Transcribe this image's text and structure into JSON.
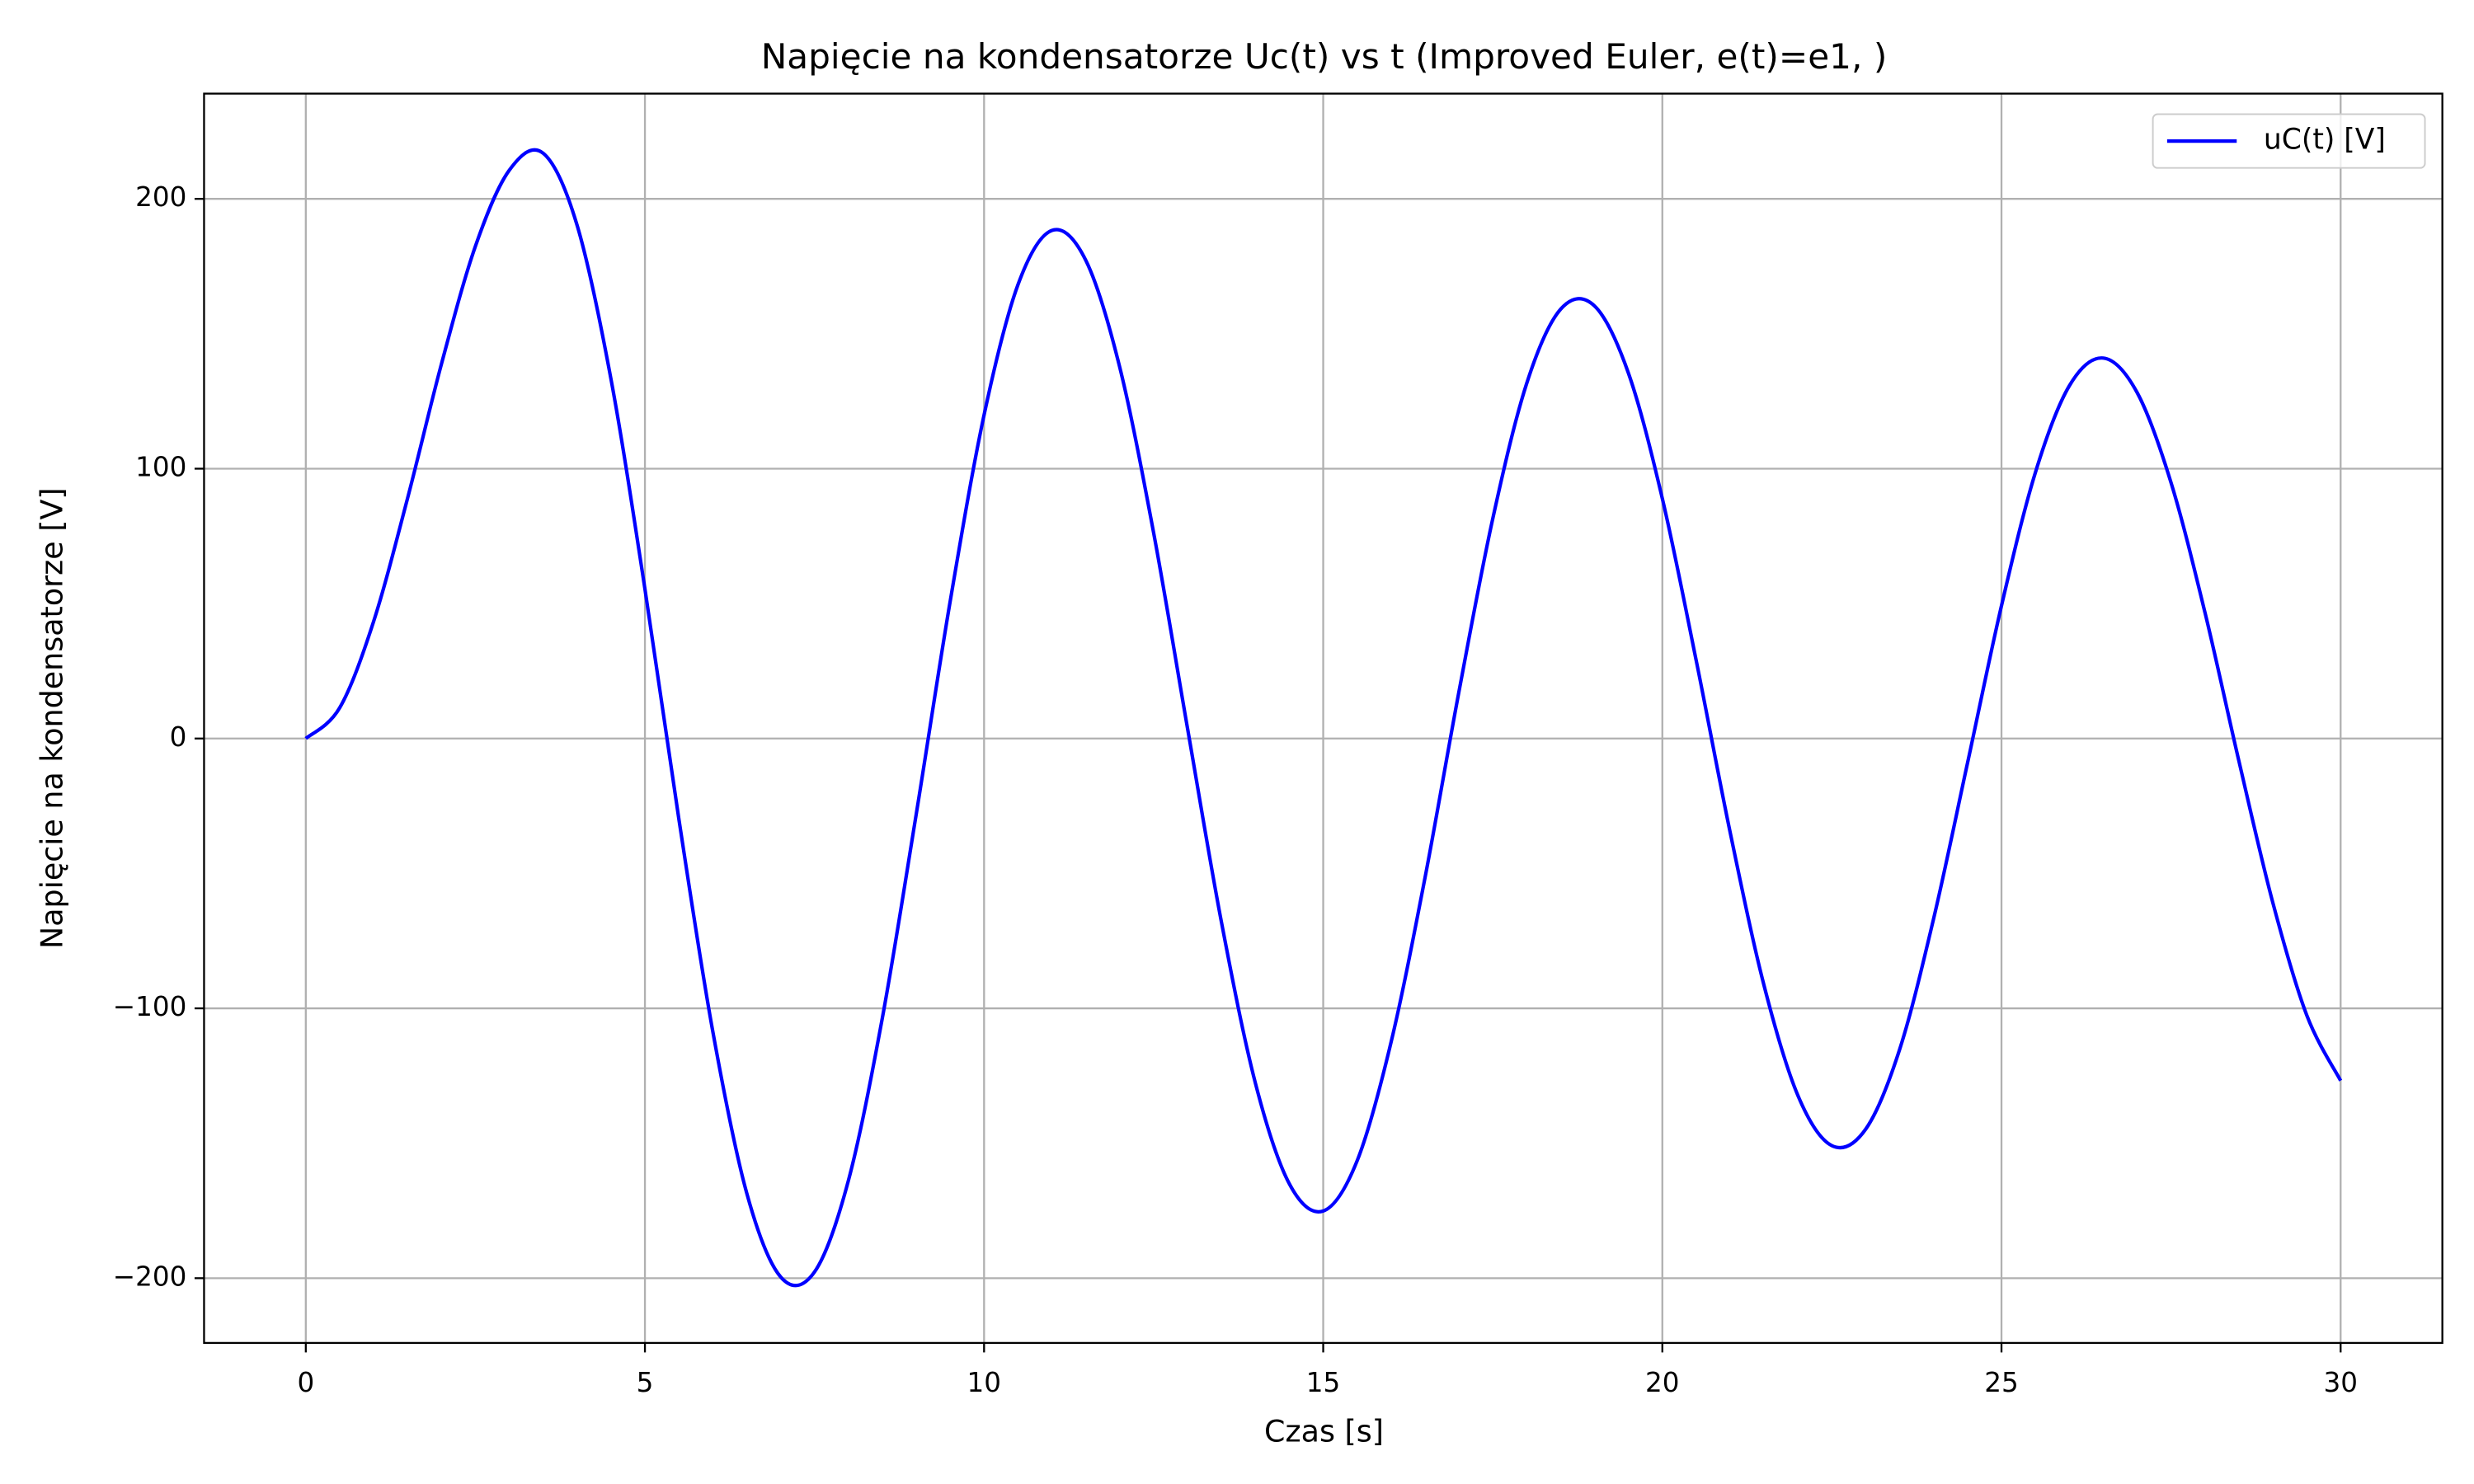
{
  "chart_data": {
    "type": "line",
    "title": "Napięcie na kondensatorze Uc(t) vs t (Improved Euler, e(t)=e1, )",
    "x_label": "Czas [s]",
    "y_label": "Napięcie na kondensatorze [V]",
    "x": [
      0,
      0.5,
      1,
      1.5,
      2,
      2.5,
      3,
      3.5,
      4,
      4.5,
      5,
      5.5,
      6,
      6.5,
      7,
      7.5,
      8,
      8.5,
      9,
      9.5,
      10,
      10.5,
      11,
      11.5,
      12,
      12.5,
      13,
      13.5,
      14,
      14.5,
      15,
      15.5,
      16,
      16.5,
      17,
      17.5,
      18,
      18.5,
      19,
      19.5,
      20,
      20.5,
      21,
      21.5,
      22,
      22.5,
      23,
      23.5,
      24,
      24.5,
      25,
      25.5,
      26,
      26.5,
      27,
      27.5,
      28,
      28.5,
      29,
      29.5,
      30
    ],
    "series": [
      {
        "name": "uC(t) [V]",
        "color": "#0000ff",
        "values": [
          0,
          11.4,
          43.4,
          89.0,
          138.8,
          182.4,
          210.6,
          216.9,
          190.2,
          133.1,
          55.4,
          -29.8,
          -108.5,
          -168.4,
          -199.5,
          -197.7,
          -163.8,
          -103.6,
          -28.0,
          50.8,
          119.9,
          168.2,
          188.3,
          177.2,
          137.6,
          76.2,
          3.7,
          -68.1,
          -127.7,
          -165.0,
          -175.1,
          -156.5,
          -112.6,
          -51.7,
          17.2,
          81.5,
          131.6,
          159.1,
          160.3,
          135.4,
          88.9,
          28.8,
          -34.8,
          -91.6,
          -132.4,
          -150.9,
          -144.7,
          -115.1,
          -66.7,
          -9.0,
          49.2,
          98.6,
          130.7,
          141.0,
          128.2,
          94.8,
          46.7,
          -8.3,
          -60.8,
          -102.5,
          -126.8
        ]
      }
    ],
    "xlim": [
      -1.5,
      31.5
    ],
    "ylim": [
      -224,
      239
    ],
    "xticks": [
      0,
      5,
      10,
      15,
      20,
      25,
      30
    ],
    "yticks": [
      {
        "value": -200,
        "label": "−200"
      },
      {
        "value": -100,
        "label": "−100"
      },
      0,
      100,
      200
    ],
    "grid": true,
    "legend": "upper right"
  }
}
